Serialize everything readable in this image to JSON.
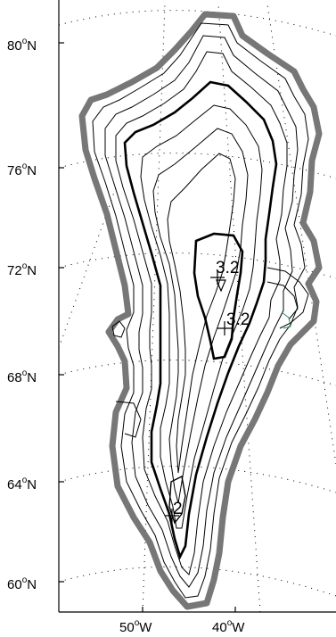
{
  "map": {
    "lat_labels": [
      {
        "deg": "80",
        "unit": "o",
        "hemi": "N"
      },
      {
        "deg": "76",
        "unit": "o",
        "hemi": "N"
      },
      {
        "deg": "72",
        "unit": "o",
        "hemi": "N"
      },
      {
        "deg": "68",
        "unit": "o",
        "hemi": "N"
      },
      {
        "deg": "64",
        "unit": "o",
        "hemi": "N"
      },
      {
        "deg": "60",
        "unit": "o",
        "hemi": "N"
      }
    ],
    "lon_labels": [
      {
        "deg": "50",
        "unit": "o",
        "hemi": "W"
      },
      {
        "deg": "40",
        "unit": "o",
        "hemi": "W"
      }
    ],
    "contour_labels": [
      "3.2",
      "3.2",
      "2"
    ],
    "colors": {
      "coast_outline": "#777777",
      "contour": "#000000",
      "graticule": "#000000",
      "background": "#ffffff",
      "accent_contour": "#2e8b57"
    }
  }
}
